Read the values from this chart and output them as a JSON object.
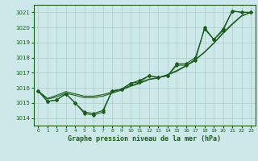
{
  "title": "Graphe pression niveau de la mer (hPa)",
  "background_color": "#cce8e8",
  "grid_color": "#aacccc",
  "line_color": "#1a5c1a",
  "xlim": [
    -0.5,
    23.5
  ],
  "ylim": [
    1013.5,
    1021.5
  ],
  "yticks": [
    1014,
    1015,
    1016,
    1017,
    1018,
    1019,
    1020,
    1021
  ],
  "xticks": [
    0,
    1,
    2,
    3,
    4,
    5,
    6,
    7,
    8,
    9,
    10,
    11,
    12,
    13,
    14,
    15,
    16,
    17,
    18,
    19,
    20,
    21,
    22,
    23
  ],
  "series1": [
    1015.8,
    1015.1,
    1015.2,
    1015.6,
    1015.0,
    1014.3,
    1014.2,
    1014.4,
    1015.8,
    1015.9,
    1016.3,
    1016.4,
    1016.8,
    1016.7,
    1016.8,
    1017.5,
    1017.5,
    1017.8,
    1020.0,
    1019.2,
    1019.8,
    1021.1,
    1021.0,
    1021.0
  ],
  "series2": [
    1015.8,
    1015.1,
    1015.2,
    1015.6,
    1015.0,
    1014.4,
    1014.3,
    1014.5,
    1015.8,
    1015.9,
    1016.3,
    1016.5,
    1016.8,
    1016.7,
    1016.8,
    1017.6,
    1017.6,
    1018.0,
    1019.9,
    1019.2,
    1019.9,
    1021.1,
    1021.0,
    1021.0
  ],
  "series_smooth1": [
    1015.8,
    1015.25,
    1015.4,
    1015.65,
    1015.5,
    1015.35,
    1015.35,
    1015.45,
    1015.65,
    1015.85,
    1016.1,
    1016.3,
    1016.55,
    1016.65,
    1016.85,
    1017.1,
    1017.45,
    1017.85,
    1018.35,
    1018.95,
    1019.6,
    1020.2,
    1020.75,
    1021.0
  ],
  "series_smooth2": [
    1015.8,
    1015.3,
    1015.5,
    1015.75,
    1015.6,
    1015.45,
    1015.45,
    1015.55,
    1015.72,
    1015.92,
    1016.15,
    1016.35,
    1016.58,
    1016.68,
    1016.88,
    1017.15,
    1017.48,
    1017.88,
    1018.38,
    1018.98,
    1019.65,
    1020.25,
    1020.78,
    1021.0
  ]
}
